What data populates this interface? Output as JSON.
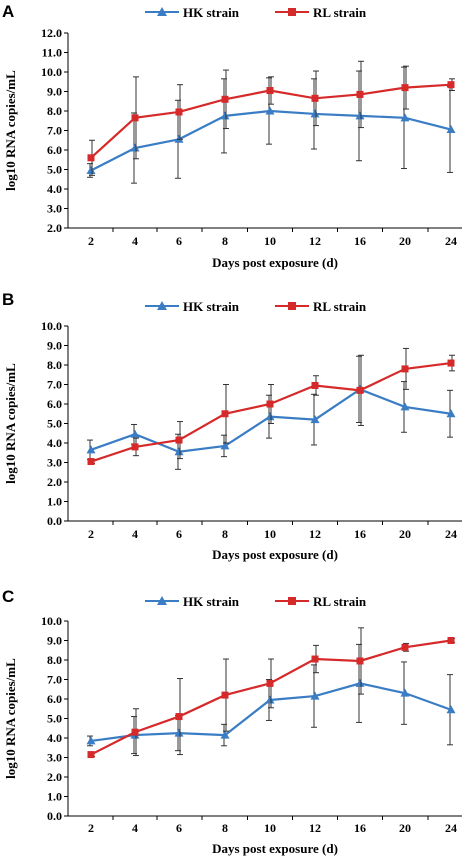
{
  "chart_data": [
    {
      "type": "line",
      "panel": "A",
      "categories": [
        "2",
        "4",
        "6",
        "8",
        "10",
        "12",
        "16",
        "20",
        "24"
      ],
      "xlabel": "Days post exposure (d)",
      "ylabel": "log10 RNA copies/mL",
      "ylim": [
        2.0,
        12.0
      ],
      "yticks": [
        "2.0",
        "3.0",
        "4.0",
        "5.0",
        "6.0",
        "7.0",
        "8.0",
        "9.0",
        "10.0",
        "11.0",
        "12.0"
      ],
      "legend_position": "top",
      "series": [
        {
          "name": "HK strain",
          "color": "#3a7dc4",
          "marker": "triangle",
          "values": [
            4.95,
            6.1,
            6.55,
            7.75,
            8.0,
            7.85,
            7.75,
            7.65,
            7.05
          ],
          "errors": [
            0.35,
            1.8,
            2.0,
            1.9,
            1.7,
            1.8,
            2.3,
            2.6,
            2.2
          ]
        },
        {
          "name": "RL strain",
          "color": "#d62a2a",
          "marker": "square",
          "values": [
            5.6,
            7.65,
            7.95,
            8.6,
            9.05,
            8.65,
            8.85,
            9.2,
            9.35
          ],
          "errors": [
            0.9,
            2.1,
            1.4,
            1.5,
            0.7,
            1.4,
            1.7,
            1.1,
            0.3
          ]
        }
      ]
    },
    {
      "type": "line",
      "panel": "B",
      "categories": [
        "2",
        "4",
        "6",
        "8",
        "10",
        "12",
        "16",
        "20",
        "24"
      ],
      "xlabel": "Days post exposure (d)",
      "ylabel": "log10 RNA copies/mL",
      "ylim": [
        0.0,
        10.0
      ],
      "yticks": [
        "0.0",
        "1.0",
        "2.0",
        "3.0",
        "4.0",
        "5.0",
        "6.0",
        "7.0",
        "8.0",
        "9.0",
        "10.0"
      ],
      "legend_position": "top",
      "series": [
        {
          "name": "HK strain",
          "color": "#3a7dc4",
          "marker": "triangle",
          "values": [
            3.65,
            4.45,
            3.55,
            3.85,
            5.35,
            5.2,
            6.75,
            5.85,
            5.5
          ],
          "errors": [
            0.5,
            0.5,
            0.9,
            0.55,
            1.1,
            1.3,
            1.7,
            1.3,
            1.2
          ]
        },
        {
          "name": "RL strain",
          "color": "#d62a2a",
          "marker": "square",
          "values": [
            3.05,
            3.8,
            4.15,
            5.5,
            6.0,
            6.95,
            6.7,
            7.8,
            8.1
          ],
          "errors": [
            0.1,
            0.45,
            0.95,
            1.5,
            1.0,
            0.5,
            1.8,
            1.05,
            0.4
          ]
        }
      ]
    },
    {
      "type": "line",
      "panel": "C",
      "categories": [
        "2",
        "4",
        "6",
        "8",
        "10",
        "12",
        "16",
        "20",
        "24"
      ],
      "xlabel": "Days post exposure (d)",
      "ylabel": "log10 RNA copies/mL",
      "ylim": [
        0.0,
        10.0
      ],
      "yticks": [
        "0.0",
        "1.0",
        "2.0",
        "3.0",
        "4.0",
        "5.0",
        "6.0",
        "7.0",
        "8.0",
        "9.0",
        "10.0"
      ],
      "legend_position": "top",
      "series": [
        {
          "name": "HK strain",
          "color": "#3a7dc4",
          "marker": "triangle",
          "values": [
            3.85,
            4.15,
            4.25,
            4.15,
            5.95,
            6.15,
            6.8,
            6.3,
            5.45
          ],
          "errors": [
            0.25,
            0.95,
            0.9,
            0.55,
            1.05,
            1.6,
            2.0,
            1.6,
            1.8
          ]
        },
        {
          "name": "RL strain",
          "color": "#d62a2a",
          "marker": "square",
          "values": [
            3.15,
            4.3,
            5.1,
            6.2,
            6.8,
            8.05,
            7.95,
            8.65,
            9.0
          ],
          "errors": [
            0.1,
            1.2,
            1.95,
            1.85,
            1.25,
            0.7,
            1.7,
            0.2,
            0.1
          ]
        }
      ]
    }
  ]
}
